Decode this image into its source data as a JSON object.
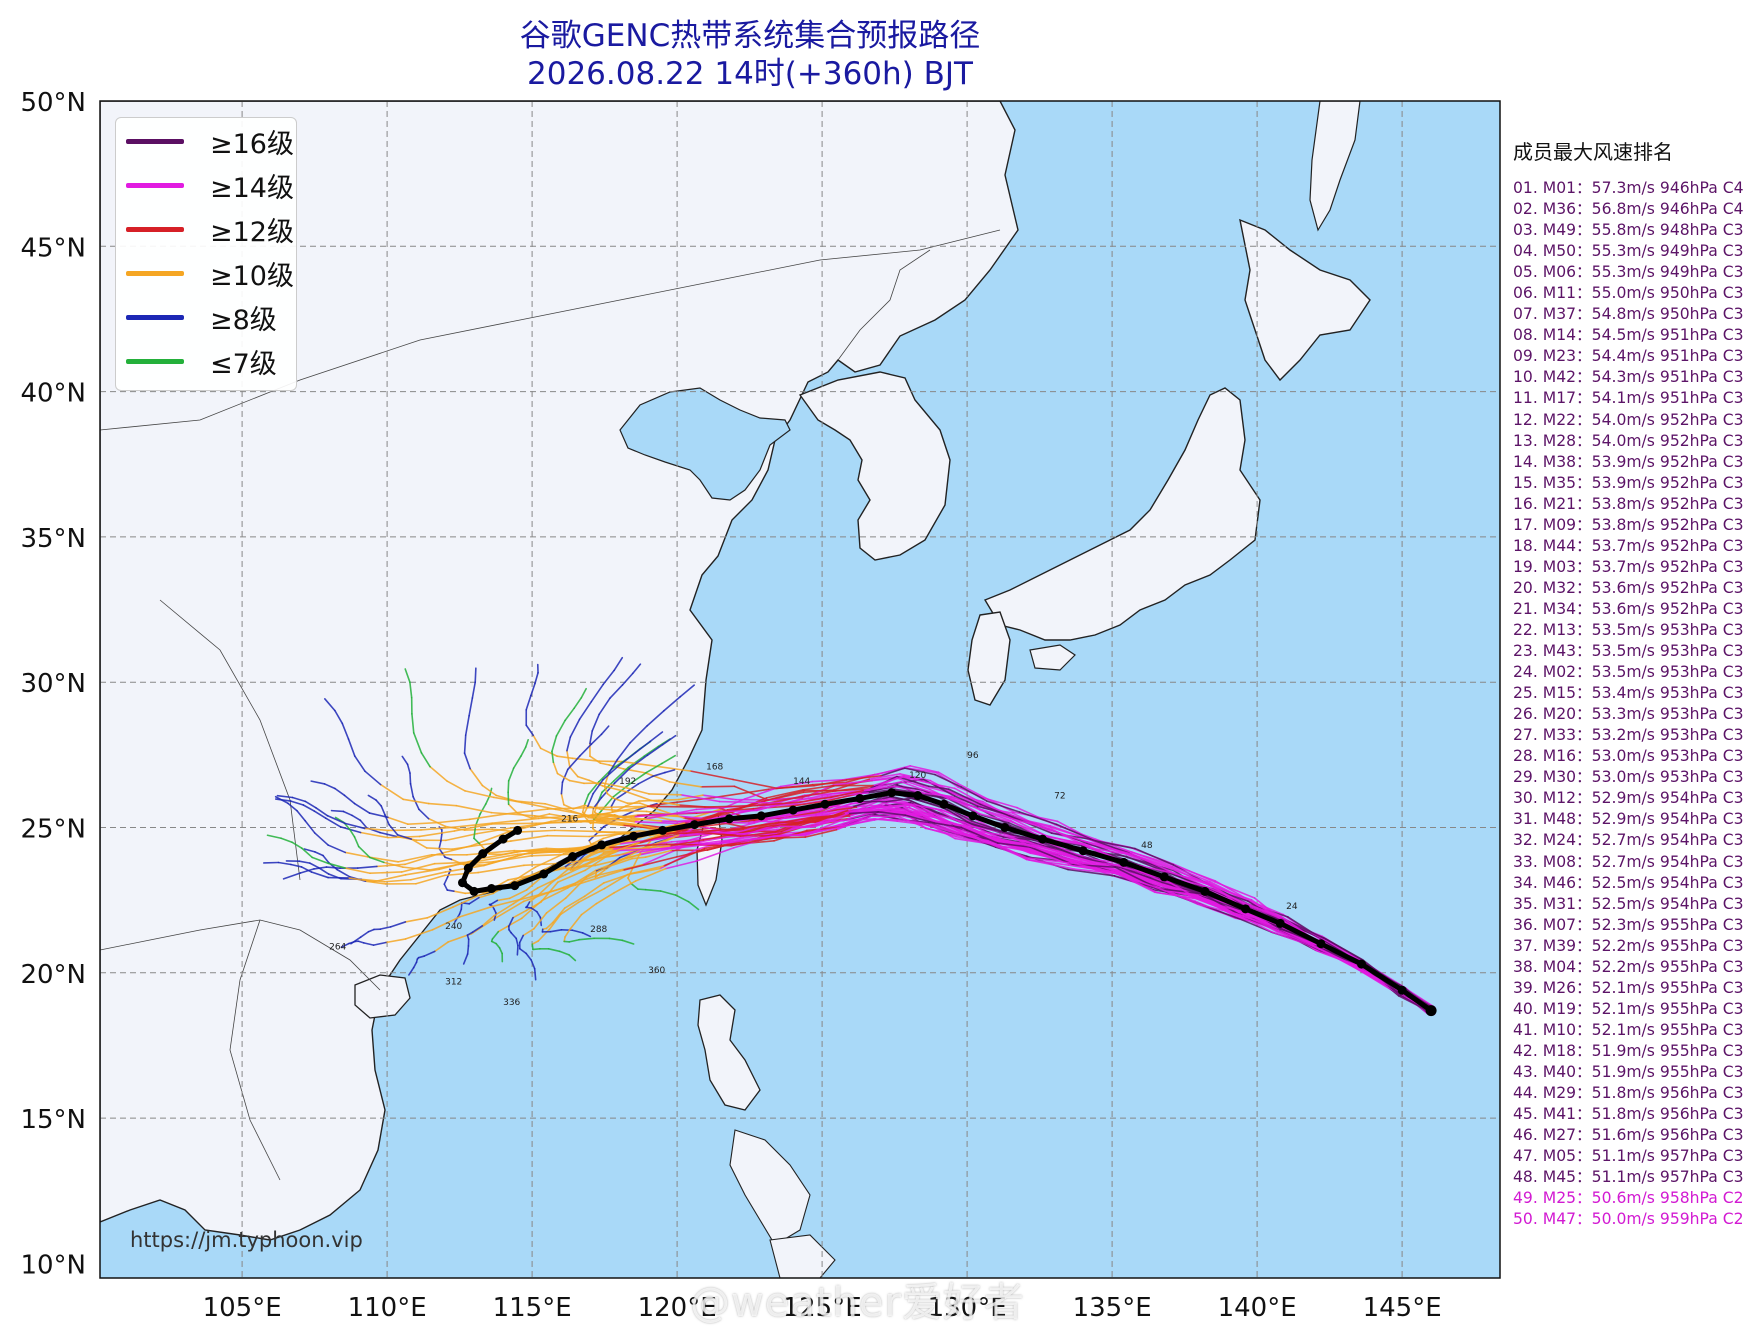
{
  "title_line1": "谷歌GENC热带系统集合预报路径",
  "title_line2": "2026.08.22 14时(+360h) BJT",
  "lat_labels": [
    "50°N",
    "45°N",
    "40°N",
    "35°N",
    "30°N",
    "25°N",
    "20°N",
    "15°N",
    "10°N"
  ],
  "lon_labels": [
    "105°E",
    "110°E",
    "115°E",
    "120°E",
    "125°E",
    "130°E",
    "135°E",
    "140°E",
    "145°E"
  ],
  "legend": [
    {
      "label": "≥16级",
      "color": "#5b0f63"
    },
    {
      "label": "≥14级",
      "color": "#e11be1"
    },
    {
      "label": "≥12级",
      "color": "#d62027"
    },
    {
      "label": "≥10级",
      "color": "#f5a623"
    },
    {
      "label": "≥8级",
      "color": "#1c27b5"
    },
    {
      "label": "≤7级",
      "color": "#23b03a"
    }
  ],
  "ranking_title": "成员最大风速排名",
  "ranking": [
    "01. M01：57.3m/s 946hPa C4",
    "02. M36：56.8m/s 946hPa C4",
    "03. M49：55.8m/s 948hPa C3",
    "04. M50：55.3m/s 949hPa C3",
    "05. M06：55.3m/s 949hPa C3",
    "06. M11：55.0m/s 950hPa C3",
    "07. M37：54.8m/s 950hPa C3",
    "08. M14：54.5m/s 951hPa C3",
    "09. M23：54.4m/s 951hPa C3",
    "10. M42：54.3m/s 951hPa C3",
    "11. M17：54.1m/s 951hPa C3",
    "12. M22：54.0m/s 952hPa C3",
    "13. M28：54.0m/s 952hPa C3",
    "14. M38：53.9m/s 952hPa C3",
    "15. M35：53.9m/s 952hPa C3",
    "16. M21：53.8m/s 952hPa C3",
    "17. M09：53.8m/s 952hPa C3",
    "18. M44：53.7m/s 952hPa C3",
    "19. M03：53.7m/s 952hPa C3",
    "20. M32：53.6m/s 952hPa C3",
    "21. M34：53.6m/s 952hPa C3",
    "22. M13：53.5m/s 953hPa C3",
    "23. M43：53.5m/s 953hPa C3",
    "24. M02：53.5m/s 953hPa C3",
    "25. M15：53.4m/s 953hPa C3",
    "26. M20：53.3m/s 953hPa C3",
    "27. M33：53.2m/s 953hPa C3",
    "28. M16：53.0m/s 953hPa C3",
    "29. M30：53.0m/s 953hPa C3",
    "30. M12：52.9m/s 954hPa C3",
    "31. M48：52.9m/s 954hPa C3",
    "32. M24：52.7m/s 954hPa C3",
    "33. M08：52.7m/s 954hPa C3",
    "34. M46：52.5m/s 954hPa C3",
    "35. M31：52.5m/s 954hPa C3",
    "36. M07：52.3m/s 955hPa C3",
    "37. M39：52.2m/s 955hPa C3",
    "38. M04：52.2m/s 955hPa C3",
    "39. M26：52.1m/s 955hPa C3",
    "40. M19：52.1m/s 955hPa C3",
    "41. M10：52.1m/s 955hPa C3",
    "42. M18：51.9m/s 955hPa C3",
    "43. M40：51.9m/s 955hPa C3",
    "44. M29：51.8m/s 956hPa C3",
    "45. M41：51.8m/s 956hPa C3",
    "46. M27：51.6m/s 956hPa C3",
    "47. M05：51.1m/s 957hPa C3",
    "48. M45：51.1m/s 957hPa C3",
    "49. M25：50.6m/s 958hPa C2",
    "50. M47：50.0m/s 959hPa C2"
  ],
  "source_url": "https://jm.typhoon.vip",
  "watermark": "@weather爱好者",
  "colors": {
    "ocean": "#a9d9f8",
    "land": "#f2f4fa",
    "ensemble_mean": "#000000"
  },
  "track_labels": [
    "96",
    "120",
    "144",
    "168",
    "192",
    "216",
    "240",
    "264",
    "288",
    "312",
    "336",
    "360",
    "72",
    "48",
    "24"
  ]
}
